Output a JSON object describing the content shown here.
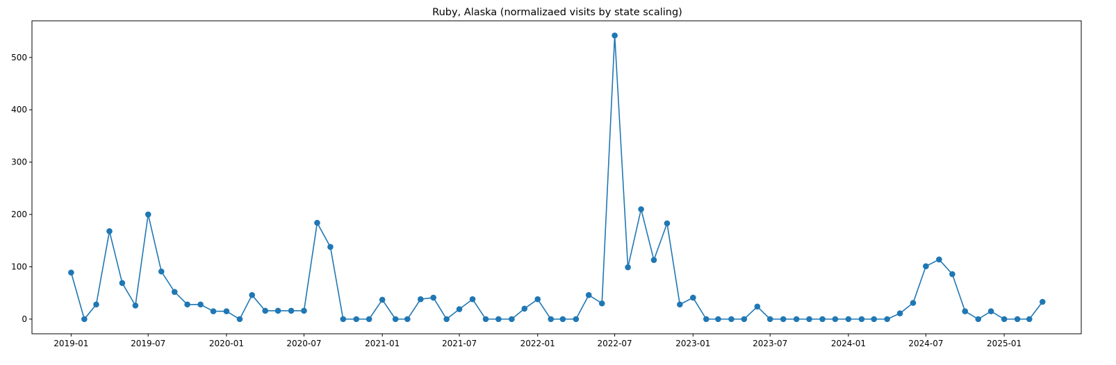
{
  "chart_data": {
    "type": "line",
    "title": "Ruby, Alaska (normalizaed visits by state scaling)",
    "xlabel": "",
    "ylabel": "",
    "color": "#1f77b4",
    "marker": "circle",
    "grid": false,
    "legend": "none",
    "xlim": [
      "2018-10-01",
      "2025-07-01"
    ],
    "ylim": [
      -28,
      570
    ],
    "x_ticks": [
      "2019-01",
      "2019-07",
      "2020-01",
      "2020-07",
      "2021-01",
      "2021-07",
      "2022-01",
      "2022-07",
      "2023-01",
      "2023-07",
      "2024-01",
      "2024-07",
      "2025-01"
    ],
    "y_ticks": [
      0,
      100,
      200,
      300,
      400,
      500
    ],
    "x": [
      "2019-01-01",
      "2019-02-01",
      "2019-03-01",
      "2019-04-01",
      "2019-05-01",
      "2019-06-01",
      "2019-07-01",
      "2019-08-01",
      "2019-09-01",
      "2019-10-01",
      "2019-11-01",
      "2019-12-01",
      "2020-01-01",
      "2020-02-01",
      "2020-03-01",
      "2020-04-01",
      "2020-05-01",
      "2020-06-01",
      "2020-07-01",
      "2020-08-01",
      "2020-09-01",
      "2020-10-01",
      "2020-11-01",
      "2020-12-01",
      "2021-01-01",
      "2021-02-01",
      "2021-03-01",
      "2021-04-01",
      "2021-05-01",
      "2021-06-01",
      "2021-07-01",
      "2021-08-01",
      "2021-09-01",
      "2021-10-01",
      "2021-11-01",
      "2021-12-01",
      "2022-01-01",
      "2022-02-01",
      "2022-03-01",
      "2022-04-01",
      "2022-05-01",
      "2022-06-01",
      "2022-07-01",
      "2022-08-01",
      "2022-09-01",
      "2022-10-01",
      "2022-11-01",
      "2022-12-01",
      "2023-01-01",
      "2023-02-01",
      "2023-03-01",
      "2023-04-01",
      "2023-05-01",
      "2023-06-01",
      "2023-07-01",
      "2023-08-01",
      "2023-09-01",
      "2023-10-01",
      "2023-11-01",
      "2023-12-01",
      "2024-01-01",
      "2024-02-01",
      "2024-03-01",
      "2024-04-01",
      "2024-05-01",
      "2024-06-01",
      "2024-07-01",
      "2024-08-01",
      "2024-09-01",
      "2024-10-01",
      "2024-11-01",
      "2024-12-01",
      "2025-01-01",
      "2025-02-01",
      "2025-03-01",
      "2025-04-01"
    ],
    "values": [
      89,
      0,
      28,
      168,
      69,
      26,
      200,
      91,
      52,
      28,
      28,
      15,
      15,
      0,
      46,
      16,
      16,
      16,
      16,
      184,
      138,
      0,
      0,
      0,
      37,
      0,
      0,
      38,
      41,
      0,
      19,
      38,
      0,
      0,
      0,
      20,
      38,
      0,
      0,
      0,
      46,
      30,
      542,
      99,
      210,
      113,
      183,
      28,
      41,
      0,
      0,
      0,
      0,
      24,
      0,
      0,
      0,
      0,
      0,
      0,
      0,
      0,
      0,
      0,
      11,
      31,
      101,
      114,
      86,
      15,
      0,
      15,
      0,
      0,
      0,
      33
    ]
  }
}
